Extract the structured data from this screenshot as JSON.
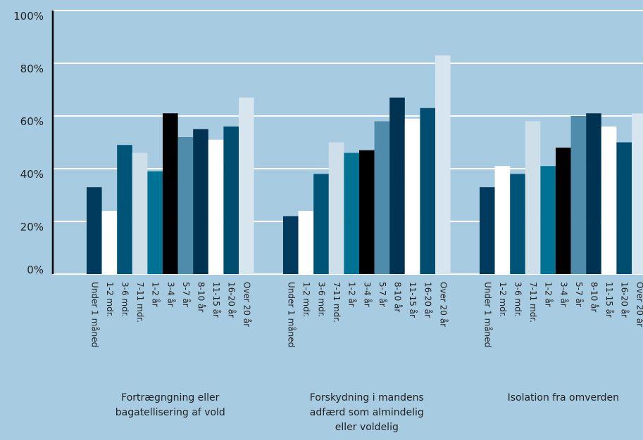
{
  "chart_data": {
    "type": "bar",
    "categories": [
      "Fortrægngning eller bagatellisering af vold",
      "Forskydning i mandens adfærd som almindelig eller voldelig",
      "Isolation fra omverden"
    ],
    "series": [
      {
        "name": "Under 1 måned",
        "color": "#003a5c",
        "values": [
          33,
          22,
          33
        ]
      },
      {
        "name": "1-2 mdr.",
        "color": "#ffffff",
        "values": [
          24,
          24,
          41
        ]
      },
      {
        "name": "3-6 mdr.",
        "color": "#005478",
        "values": [
          49,
          38,
          38
        ]
      },
      {
        "name": "7-11 mdr.",
        "color": "#cfdfea",
        "values": [
          46,
          50,
          58
        ]
      },
      {
        "name": "1-2 år",
        "color": "#007394",
        "values": [
          39,
          46,
          41
        ]
      },
      {
        "name": "3-4 år",
        "color": "#000000",
        "values": [
          61,
          47,
          48
        ]
      },
      {
        "name": "5-7 år",
        "color": "#4f8baa",
        "values": [
          52,
          58,
          60
        ]
      },
      {
        "name": "8-10 år",
        "color": "#003352",
        "values": [
          55,
          67,
          61
        ]
      },
      {
        "name": "11-15 år",
        "color": "#ffffff",
        "values": [
          51,
          59,
          56
        ]
      },
      {
        "name": "16-20 år",
        "color": "#004d70",
        "values": [
          56,
          63,
          50
        ]
      },
      {
        "name": "Over 20 år",
        "color": "#d6e5ee",
        "values": [
          67,
          83,
          61
        ]
      }
    ],
    "ylim": [
      0,
      100
    ],
    "yticks": [
      {
        "value": 0,
        "label": "0%"
      },
      {
        "value": 20,
        "label": "20%"
      },
      {
        "value": 40,
        "label": "40%"
      },
      {
        "value": 60,
        "label": "60%"
      },
      {
        "value": 80,
        "label": "80%"
      },
      {
        "value": 100,
        "label": "100%"
      }
    ],
    "grid": true
  }
}
